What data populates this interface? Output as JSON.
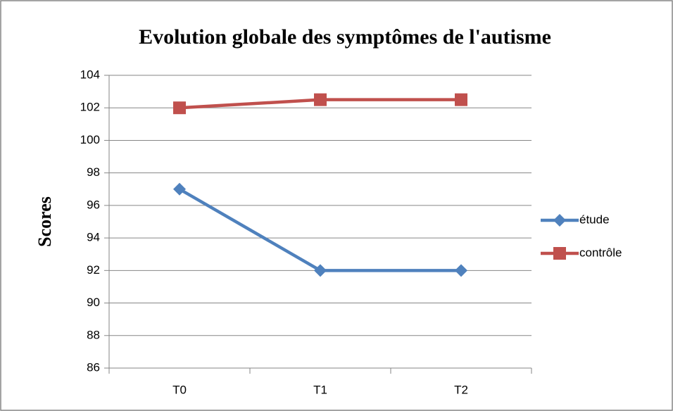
{
  "chart_data": {
    "type": "line",
    "title": "Evolution globale des symptômes de l'autisme",
    "y_label": "Scores",
    "categories": [
      "T0",
      "T1",
      "T2"
    ],
    "series": [
      {
        "name": "étude",
        "color": "#4f81bd",
        "marker": "diamond",
        "values": [
          97,
          92,
          92
        ]
      },
      {
        "name": "contrôle",
        "color": "#c0504d",
        "marker": "square",
        "values": [
          102,
          102.5,
          102.5
        ]
      }
    ],
    "ylim": [
      86,
      104
    ],
    "yticks": [
      86,
      88,
      90,
      92,
      94,
      96,
      98,
      100,
      102,
      104
    ],
    "grid": true,
    "legend": "right"
  }
}
